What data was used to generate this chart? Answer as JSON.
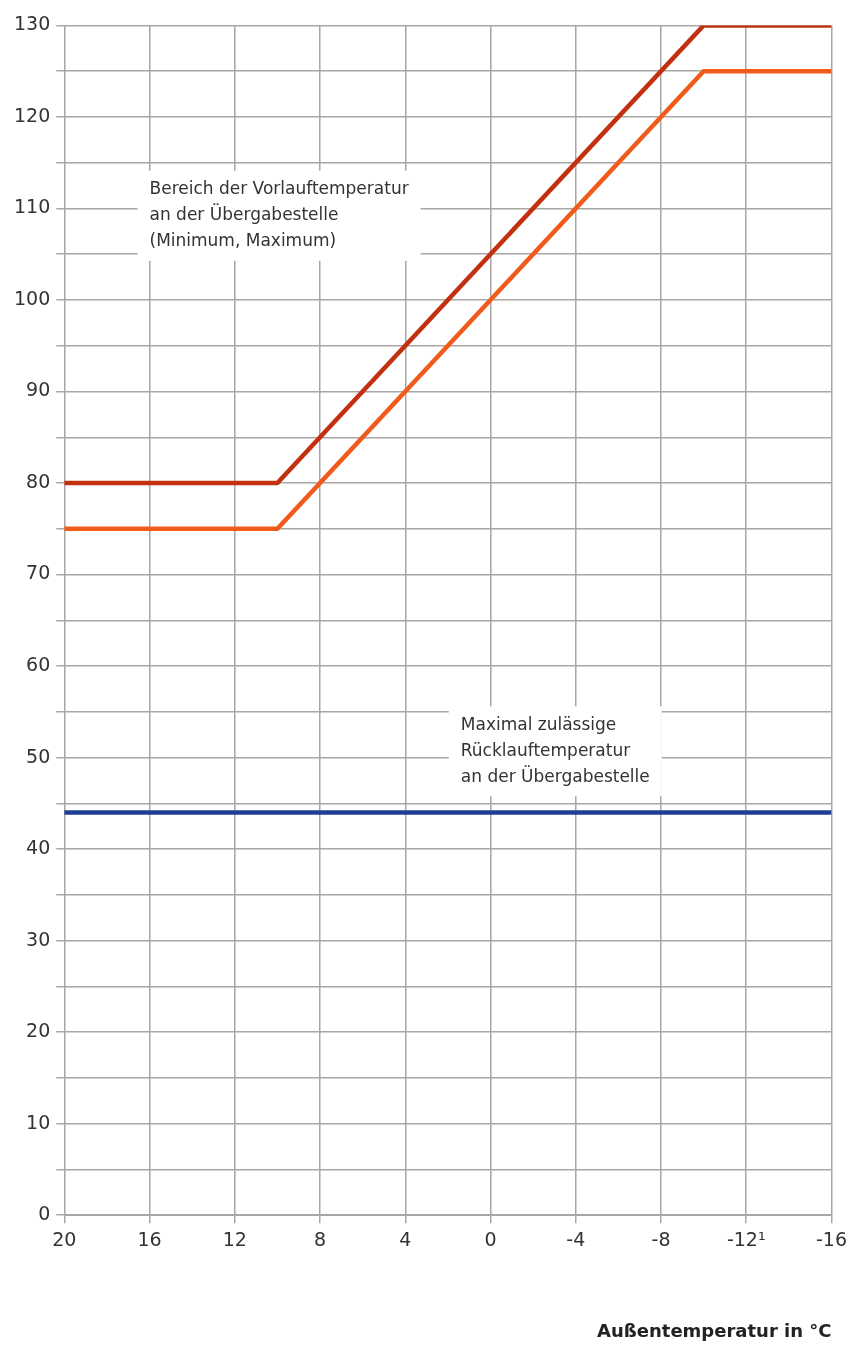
{
  "chart_data": {
    "type": "line",
    "xlabel": "Außentemperatur in °C",
    "xlim": [
      20,
      -16
    ],
    "xticks": [
      20,
      16,
      12,
      8,
      4,
      0,
      -4,
      -8,
      {
        "value": -12,
        "label": "-12¹"
      },
      -16
    ],
    "ylim": [
      0,
      130
    ],
    "yticks": [
      0,
      {
        "value": 5,
        "label": null
      },
      10,
      {
        "value": 15,
        "label": null
      },
      20,
      {
        "value": 25,
        "label": null
      },
      30,
      {
        "value": 35,
        "label": null
      },
      40,
      {
        "value": 45,
        "label": null
      },
      50,
      {
        "value": 55,
        "label": null
      },
      60,
      {
        "value": 65,
        "label": null
      },
      70,
      {
        "value": 75,
        "label": null
      },
      80,
      {
        "value": 85,
        "label": null
      },
      90,
      {
        "value": 95,
        "label": null
      },
      100,
      {
        "value": 105,
        "label": null
      },
      110,
      {
        "value": 115,
        "label": null
      },
      120,
      {
        "value": 125,
        "label": null
      },
      130
    ],
    "series": [
      {
        "color": "#c3300f",
        "x": [
          20,
          10,
          -10,
          -16
        ],
        "values": [
          80,
          80,
          130,
          130
        ]
      },
      {
        "color": "#f05a1a",
        "x": [
          20,
          10,
          -10,
          -16
        ],
        "values": [
          75,
          75,
          125,
          125
        ]
      },
      {
        "color": "#1d3f93",
        "x": [
          20,
          -16
        ],
        "values": [
          44,
          44
        ]
      }
    ],
    "annotations": [
      "Bereich der Vorlauftemperatur\nan der Übergabestelle\n(Minimum, Maximum)",
      "Maximal zulässige\nRücklauftemperatur\nan der Übergabestelle"
    ],
    "grid": true,
    "marker": "none",
    "line_style": "solid",
    "legend": false
  }
}
